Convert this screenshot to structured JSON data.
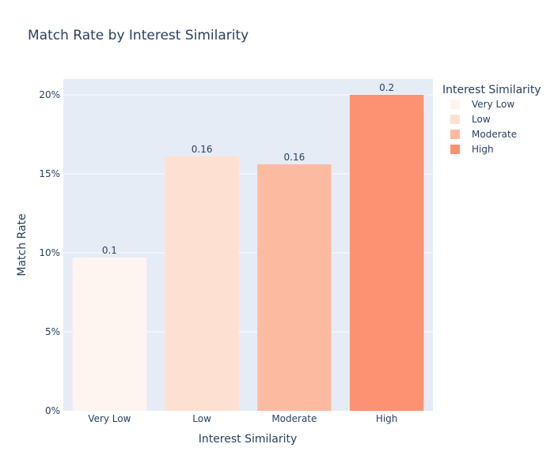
{
  "chart_data": {
    "type": "bar",
    "title": "Match Rate by Interest Similarity",
    "xlabel": "Interest Similarity",
    "ylabel": "Match Rate",
    "categories": [
      "Very Low",
      "Low",
      "Moderate",
      "High"
    ],
    "values": [
      0.097,
      0.161,
      0.156,
      0.2
    ],
    "data_labels": [
      "0.1",
      "0.16",
      "0.16",
      "0.2"
    ],
    "colors": [
      "#fff5f0",
      "#fee0d2",
      "#fcbba1",
      "#fc9272"
    ],
    "ylim": [
      0,
      0.21
    ],
    "yticks": [
      0,
      0.05,
      0.1,
      0.15,
      0.2
    ],
    "ytick_labels": [
      "0%",
      "5%",
      "10%",
      "15%",
      "20%"
    ],
    "grid": true,
    "plot_background": "#e5ecf6",
    "legend": {
      "title": "Interest Similarity",
      "placement": "top-right",
      "items": [
        "Very Low",
        "Low",
        "Moderate",
        "High"
      ]
    }
  }
}
